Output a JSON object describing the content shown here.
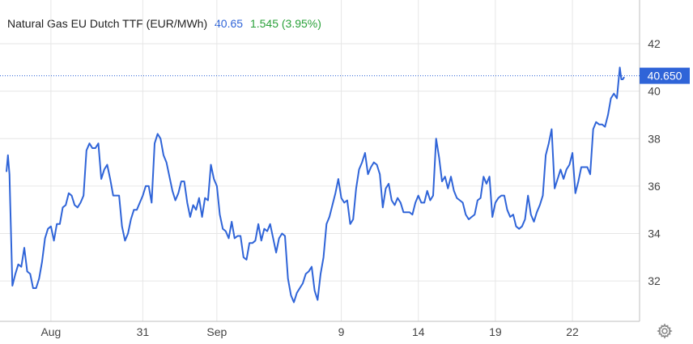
{
  "header": {
    "title": "Natural Gas EU Dutch TTF (EUR/MWh)",
    "last": "40.65",
    "change": "1.545 (3.95%)"
  },
  "colors": {
    "line": "#2f64d8",
    "change_positive": "#2aa13a",
    "grid": "#e6e6e6",
    "last_marker_bg": "#2f64d8",
    "axis_text": "#444444"
  },
  "icons": {
    "settings": "gear-icon"
  },
  "chart_data": {
    "type": "line",
    "title": "Natural Gas EU Dutch TTF (EUR/MWh)",
    "xlabel": "",
    "ylabel": "",
    "ylim": [
      30.3,
      43.4
    ],
    "yticks": [
      32,
      34,
      36,
      38,
      40,
      42
    ],
    "ytick_labels": [
      "32",
      "34",
      "36",
      "38",
      "40",
      "42"
    ],
    "xticks": [
      {
        "label": "Aug",
        "x": 15
      },
      {
        "label": "31",
        "x": 46
      },
      {
        "label": "Sep",
        "x": 71
      },
      {
        "label": "9",
        "x": 113
      },
      {
        "label": "14",
        "x": 139
      },
      {
        "label": "19",
        "x": 165
      },
      {
        "label": "22",
        "x": 191
      }
    ],
    "last_value_label": "40.650",
    "last_value": 40.65,
    "grid": true,
    "series": [
      {
        "values": [
          [
            0,
            36.6
          ],
          [
            0.5,
            37.3
          ],
          [
            1,
            36.5
          ],
          [
            2,
            31.8
          ],
          [
            3,
            32.3
          ],
          [
            4,
            32.7
          ],
          [
            5,
            32.6
          ],
          [
            6,
            33.4
          ],
          [
            7,
            32.4
          ],
          [
            8,
            32.3
          ],
          [
            9,
            31.7
          ],
          [
            10,
            31.7
          ],
          [
            11,
            32.1
          ],
          [
            12,
            32.8
          ],
          [
            13,
            33.8
          ],
          [
            14,
            34.2
          ],
          [
            15,
            34.3
          ],
          [
            16,
            33.7
          ],
          [
            17,
            34.4
          ],
          [
            18,
            34.4
          ],
          [
            19,
            35.1
          ],
          [
            20,
            35.2
          ],
          [
            21,
            35.7
          ],
          [
            22,
            35.6
          ],
          [
            23,
            35.2
          ],
          [
            24,
            35.1
          ],
          [
            25,
            35.3
          ],
          [
            26,
            35.6
          ],
          [
            27,
            37.5
          ],
          [
            28,
            37.8
          ],
          [
            29,
            37.6
          ],
          [
            30,
            37.6
          ],
          [
            31,
            37.8
          ],
          [
            32,
            36.3
          ],
          [
            33,
            36.7
          ],
          [
            34,
            36.9
          ],
          [
            35,
            36.3
          ],
          [
            36,
            35.6
          ],
          [
            37,
            35.6
          ],
          [
            38,
            35.6
          ],
          [
            39,
            34.3
          ],
          [
            40,
            33.7
          ],
          [
            41,
            34.0
          ],
          [
            42,
            34.6
          ],
          [
            43,
            35.0
          ],
          [
            44,
            35.0
          ],
          [
            45,
            35.3
          ],
          [
            46,
            35.6
          ],
          [
            47,
            36.0
          ],
          [
            48,
            36.0
          ],
          [
            49,
            35.3
          ],
          [
            50,
            37.8
          ],
          [
            51,
            38.2
          ],
          [
            52,
            38.0
          ],
          [
            53,
            37.3
          ],
          [
            54,
            37.0
          ],
          [
            55,
            36.4
          ],
          [
            56,
            35.8
          ],
          [
            57,
            35.4
          ],
          [
            58,
            35.7
          ],
          [
            59,
            36.2
          ],
          [
            60,
            36.2
          ],
          [
            61,
            35.3
          ],
          [
            62,
            34.7
          ],
          [
            63,
            35.2
          ],
          [
            64,
            35.0
          ],
          [
            65,
            35.5
          ],
          [
            66,
            34.7
          ],
          [
            67,
            35.5
          ],
          [
            68,
            35.4
          ],
          [
            69,
            36.9
          ],
          [
            70,
            36.3
          ],
          [
            71,
            36.0
          ],
          [
            72,
            34.8
          ],
          [
            73,
            34.2
          ],
          [
            74,
            34.1
          ],
          [
            75,
            33.8
          ],
          [
            76,
            34.5
          ],
          [
            77,
            33.8
          ],
          [
            78,
            33.9
          ],
          [
            79,
            33.9
          ],
          [
            80,
            33.0
          ],
          [
            81,
            32.9
          ],
          [
            82,
            33.6
          ],
          [
            83,
            33.6
          ],
          [
            84,
            33.7
          ],
          [
            85,
            34.4
          ],
          [
            86,
            33.7
          ],
          [
            87,
            34.2
          ],
          [
            88,
            34.1
          ],
          [
            89,
            34.4
          ],
          [
            90,
            33.8
          ],
          [
            91,
            33.2
          ],
          [
            92,
            33.8
          ],
          [
            93,
            34.0
          ],
          [
            94,
            33.9
          ],
          [
            95,
            32.1
          ],
          [
            96,
            31.4
          ],
          [
            97,
            31.1
          ],
          [
            98,
            31.5
          ],
          [
            99,
            31.7
          ],
          [
            100,
            31.9
          ],
          [
            101,
            32.3
          ],
          [
            102,
            32.4
          ],
          [
            103,
            32.6
          ],
          [
            104,
            31.6
          ],
          [
            105,
            31.2
          ],
          [
            106,
            32.3
          ],
          [
            107,
            33.0
          ],
          [
            108,
            34.4
          ],
          [
            109,
            34.7
          ],
          [
            110,
            35.2
          ],
          [
            111,
            35.7
          ],
          [
            112,
            36.3
          ],
          [
            113,
            35.5
          ],
          [
            114,
            35.3
          ],
          [
            115,
            35.4
          ],
          [
            116,
            34.4
          ],
          [
            117,
            34.6
          ],
          [
            118,
            35.9
          ],
          [
            119,
            36.7
          ],
          [
            120,
            37.0
          ],
          [
            121,
            37.4
          ],
          [
            122,
            36.5
          ],
          [
            123,
            36.8
          ],
          [
            124,
            37.0
          ],
          [
            125,
            36.9
          ],
          [
            126,
            36.5
          ],
          [
            127,
            35.1
          ],
          [
            128,
            35.9
          ],
          [
            129,
            36.1
          ],
          [
            130,
            35.4
          ],
          [
            131,
            35.2
          ],
          [
            132,
            35.5
          ],
          [
            133,
            35.3
          ],
          [
            134,
            34.9
          ],
          [
            135,
            34.9
          ],
          [
            136,
            34.9
          ],
          [
            137,
            34.8
          ],
          [
            138,
            35.3
          ],
          [
            139,
            35.6
          ],
          [
            140,
            35.3
          ],
          [
            141,
            35.3
          ],
          [
            142,
            35.8
          ],
          [
            143,
            35.4
          ],
          [
            144,
            35.6
          ],
          [
            145,
            38.0
          ],
          [
            146,
            37.2
          ],
          [
            147,
            36.2
          ],
          [
            148,
            36.4
          ],
          [
            149,
            35.9
          ],
          [
            150,
            36.4
          ],
          [
            151,
            35.8
          ],
          [
            152,
            35.5
          ],
          [
            153,
            35.4
          ],
          [
            154,
            35.3
          ],
          [
            155,
            34.8
          ],
          [
            156,
            34.6
          ],
          [
            157,
            34.7
          ],
          [
            158,
            34.8
          ],
          [
            159,
            35.4
          ],
          [
            160,
            35.5
          ],
          [
            161,
            36.4
          ],
          [
            162,
            36.1
          ],
          [
            163,
            36.4
          ],
          [
            164,
            34.7
          ],
          [
            165,
            35.3
          ],
          [
            166,
            35.5
          ],
          [
            167,
            35.6
          ],
          [
            168,
            35.6
          ],
          [
            169,
            35.0
          ],
          [
            170,
            34.7
          ],
          [
            171,
            34.8
          ],
          [
            172,
            34.3
          ],
          [
            173,
            34.2
          ],
          [
            174,
            34.3
          ],
          [
            175,
            34.6
          ],
          [
            176,
            35.6
          ],
          [
            177,
            34.8
          ],
          [
            178,
            34.5
          ],
          [
            179,
            34.9
          ],
          [
            180,
            35.2
          ],
          [
            181,
            35.6
          ],
          [
            182,
            37.3
          ],
          [
            183,
            37.8
          ],
          [
            184,
            38.4
          ],
          [
            185,
            35.9
          ],
          [
            186,
            36.3
          ],
          [
            187,
            36.7
          ],
          [
            188,
            36.3
          ],
          [
            189,
            36.7
          ],
          [
            190,
            36.9
          ],
          [
            191,
            37.4
          ],
          [
            192,
            35.7
          ],
          [
            193,
            36.2
          ],
          [
            194,
            36.8
          ],
          [
            195,
            36.8
          ],
          [
            196,
            36.8
          ],
          [
            197,
            36.5
          ],
          [
            198,
            38.4
          ],
          [
            199,
            38.7
          ],
          [
            200,
            38.6
          ],
          [
            201,
            38.6
          ],
          [
            202,
            38.5
          ],
          [
            203,
            39.0
          ],
          [
            204,
            39.7
          ],
          [
            205,
            39.9
          ],
          [
            206,
            39.7
          ],
          [
            207,
            41.0
          ],
          [
            207.5,
            40.5
          ],
          [
            208,
            40.5
          ],
          [
            208.5,
            40.6
          ]
        ]
      }
    ]
  }
}
